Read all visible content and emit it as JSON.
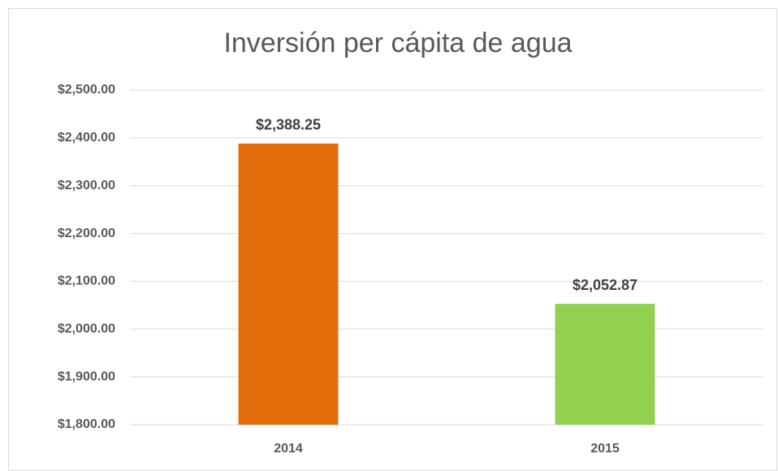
{
  "chart_data": {
    "type": "bar",
    "title": "Inversión per cápita de agua",
    "categories": [
      "2014",
      "2015"
    ],
    "values": [
      2388.25,
      2052.87
    ],
    "value_labels": [
      "$2,388.25",
      "$2,052.87"
    ],
    "colors": [
      "#e36c0a",
      "#92d050"
    ],
    "ylim": [
      1800,
      2500
    ],
    "yticks": [
      {
        "value": 1800,
        "label": "$1,800.00"
      },
      {
        "value": 1900,
        "label": "$1,900.00"
      },
      {
        "value": 2000,
        "label": "$2,000.00"
      },
      {
        "value": 2100,
        "label": "$2,100.00"
      },
      {
        "value": 2200,
        "label": "$2,200.00"
      },
      {
        "value": 2300,
        "label": "$2,300.00"
      },
      {
        "value": 2400,
        "label": "$2,400.00"
      },
      {
        "value": 2500,
        "label": "$2,500.00"
      }
    ],
    "grid": true
  }
}
